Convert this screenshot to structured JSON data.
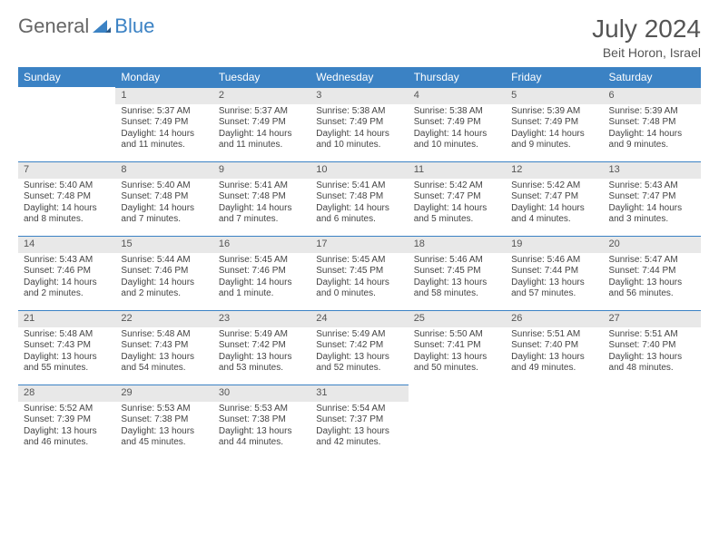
{
  "logo": {
    "text1": "General",
    "text2": "Blue"
  },
  "title": "July 2024",
  "location": "Beit Horon, Israel",
  "colors": {
    "header_bg": "#3b82c4",
    "header_fg": "#ffffff",
    "daynum_bg": "#e8e8e8",
    "daynum_border": "#3b82c4",
    "text": "#444",
    "logo_blue": "#3b82c4",
    "logo_gray": "#666"
  },
  "weekdays": [
    "Sunday",
    "Monday",
    "Tuesday",
    "Wednesday",
    "Thursday",
    "Friday",
    "Saturday"
  ],
  "weeks": [
    [
      null,
      {
        "n": "1",
        "sr": "5:37 AM",
        "ss": "7:49 PM",
        "dl": "14 hours and 11 minutes."
      },
      {
        "n": "2",
        "sr": "5:37 AM",
        "ss": "7:49 PM",
        "dl": "14 hours and 11 minutes."
      },
      {
        "n": "3",
        "sr": "5:38 AM",
        "ss": "7:49 PM",
        "dl": "14 hours and 10 minutes."
      },
      {
        "n": "4",
        "sr": "5:38 AM",
        "ss": "7:49 PM",
        "dl": "14 hours and 10 minutes."
      },
      {
        "n": "5",
        "sr": "5:39 AM",
        "ss": "7:49 PM",
        "dl": "14 hours and 9 minutes."
      },
      {
        "n": "6",
        "sr": "5:39 AM",
        "ss": "7:48 PM",
        "dl": "14 hours and 9 minutes."
      }
    ],
    [
      {
        "n": "7",
        "sr": "5:40 AM",
        "ss": "7:48 PM",
        "dl": "14 hours and 8 minutes."
      },
      {
        "n": "8",
        "sr": "5:40 AM",
        "ss": "7:48 PM",
        "dl": "14 hours and 7 minutes."
      },
      {
        "n": "9",
        "sr": "5:41 AM",
        "ss": "7:48 PM",
        "dl": "14 hours and 7 minutes."
      },
      {
        "n": "10",
        "sr": "5:41 AM",
        "ss": "7:48 PM",
        "dl": "14 hours and 6 minutes."
      },
      {
        "n": "11",
        "sr": "5:42 AM",
        "ss": "7:47 PM",
        "dl": "14 hours and 5 minutes."
      },
      {
        "n": "12",
        "sr": "5:42 AM",
        "ss": "7:47 PM",
        "dl": "14 hours and 4 minutes."
      },
      {
        "n": "13",
        "sr": "5:43 AM",
        "ss": "7:47 PM",
        "dl": "14 hours and 3 minutes."
      }
    ],
    [
      {
        "n": "14",
        "sr": "5:43 AM",
        "ss": "7:46 PM",
        "dl": "14 hours and 2 minutes."
      },
      {
        "n": "15",
        "sr": "5:44 AM",
        "ss": "7:46 PM",
        "dl": "14 hours and 2 minutes."
      },
      {
        "n": "16",
        "sr": "5:45 AM",
        "ss": "7:46 PM",
        "dl": "14 hours and 1 minute."
      },
      {
        "n": "17",
        "sr": "5:45 AM",
        "ss": "7:45 PM",
        "dl": "14 hours and 0 minutes."
      },
      {
        "n": "18",
        "sr": "5:46 AM",
        "ss": "7:45 PM",
        "dl": "13 hours and 58 minutes."
      },
      {
        "n": "19",
        "sr": "5:46 AM",
        "ss": "7:44 PM",
        "dl": "13 hours and 57 minutes."
      },
      {
        "n": "20",
        "sr": "5:47 AM",
        "ss": "7:44 PM",
        "dl": "13 hours and 56 minutes."
      }
    ],
    [
      {
        "n": "21",
        "sr": "5:48 AM",
        "ss": "7:43 PM",
        "dl": "13 hours and 55 minutes."
      },
      {
        "n": "22",
        "sr": "5:48 AM",
        "ss": "7:43 PM",
        "dl": "13 hours and 54 minutes."
      },
      {
        "n": "23",
        "sr": "5:49 AM",
        "ss": "7:42 PM",
        "dl": "13 hours and 53 minutes."
      },
      {
        "n": "24",
        "sr": "5:49 AM",
        "ss": "7:42 PM",
        "dl": "13 hours and 52 minutes."
      },
      {
        "n": "25",
        "sr": "5:50 AM",
        "ss": "7:41 PM",
        "dl": "13 hours and 50 minutes."
      },
      {
        "n": "26",
        "sr": "5:51 AM",
        "ss": "7:40 PM",
        "dl": "13 hours and 49 minutes."
      },
      {
        "n": "27",
        "sr": "5:51 AM",
        "ss": "7:40 PM",
        "dl": "13 hours and 48 minutes."
      }
    ],
    [
      {
        "n": "28",
        "sr": "5:52 AM",
        "ss": "7:39 PM",
        "dl": "13 hours and 46 minutes."
      },
      {
        "n": "29",
        "sr": "5:53 AM",
        "ss": "7:38 PM",
        "dl": "13 hours and 45 minutes."
      },
      {
        "n": "30",
        "sr": "5:53 AM",
        "ss": "7:38 PM",
        "dl": "13 hours and 44 minutes."
      },
      {
        "n": "31",
        "sr": "5:54 AM",
        "ss": "7:37 PM",
        "dl": "13 hours and 42 minutes."
      },
      null,
      null,
      null
    ]
  ],
  "labels": {
    "sunrise": "Sunrise:",
    "sunset": "Sunset:",
    "daylight": "Daylight:"
  }
}
